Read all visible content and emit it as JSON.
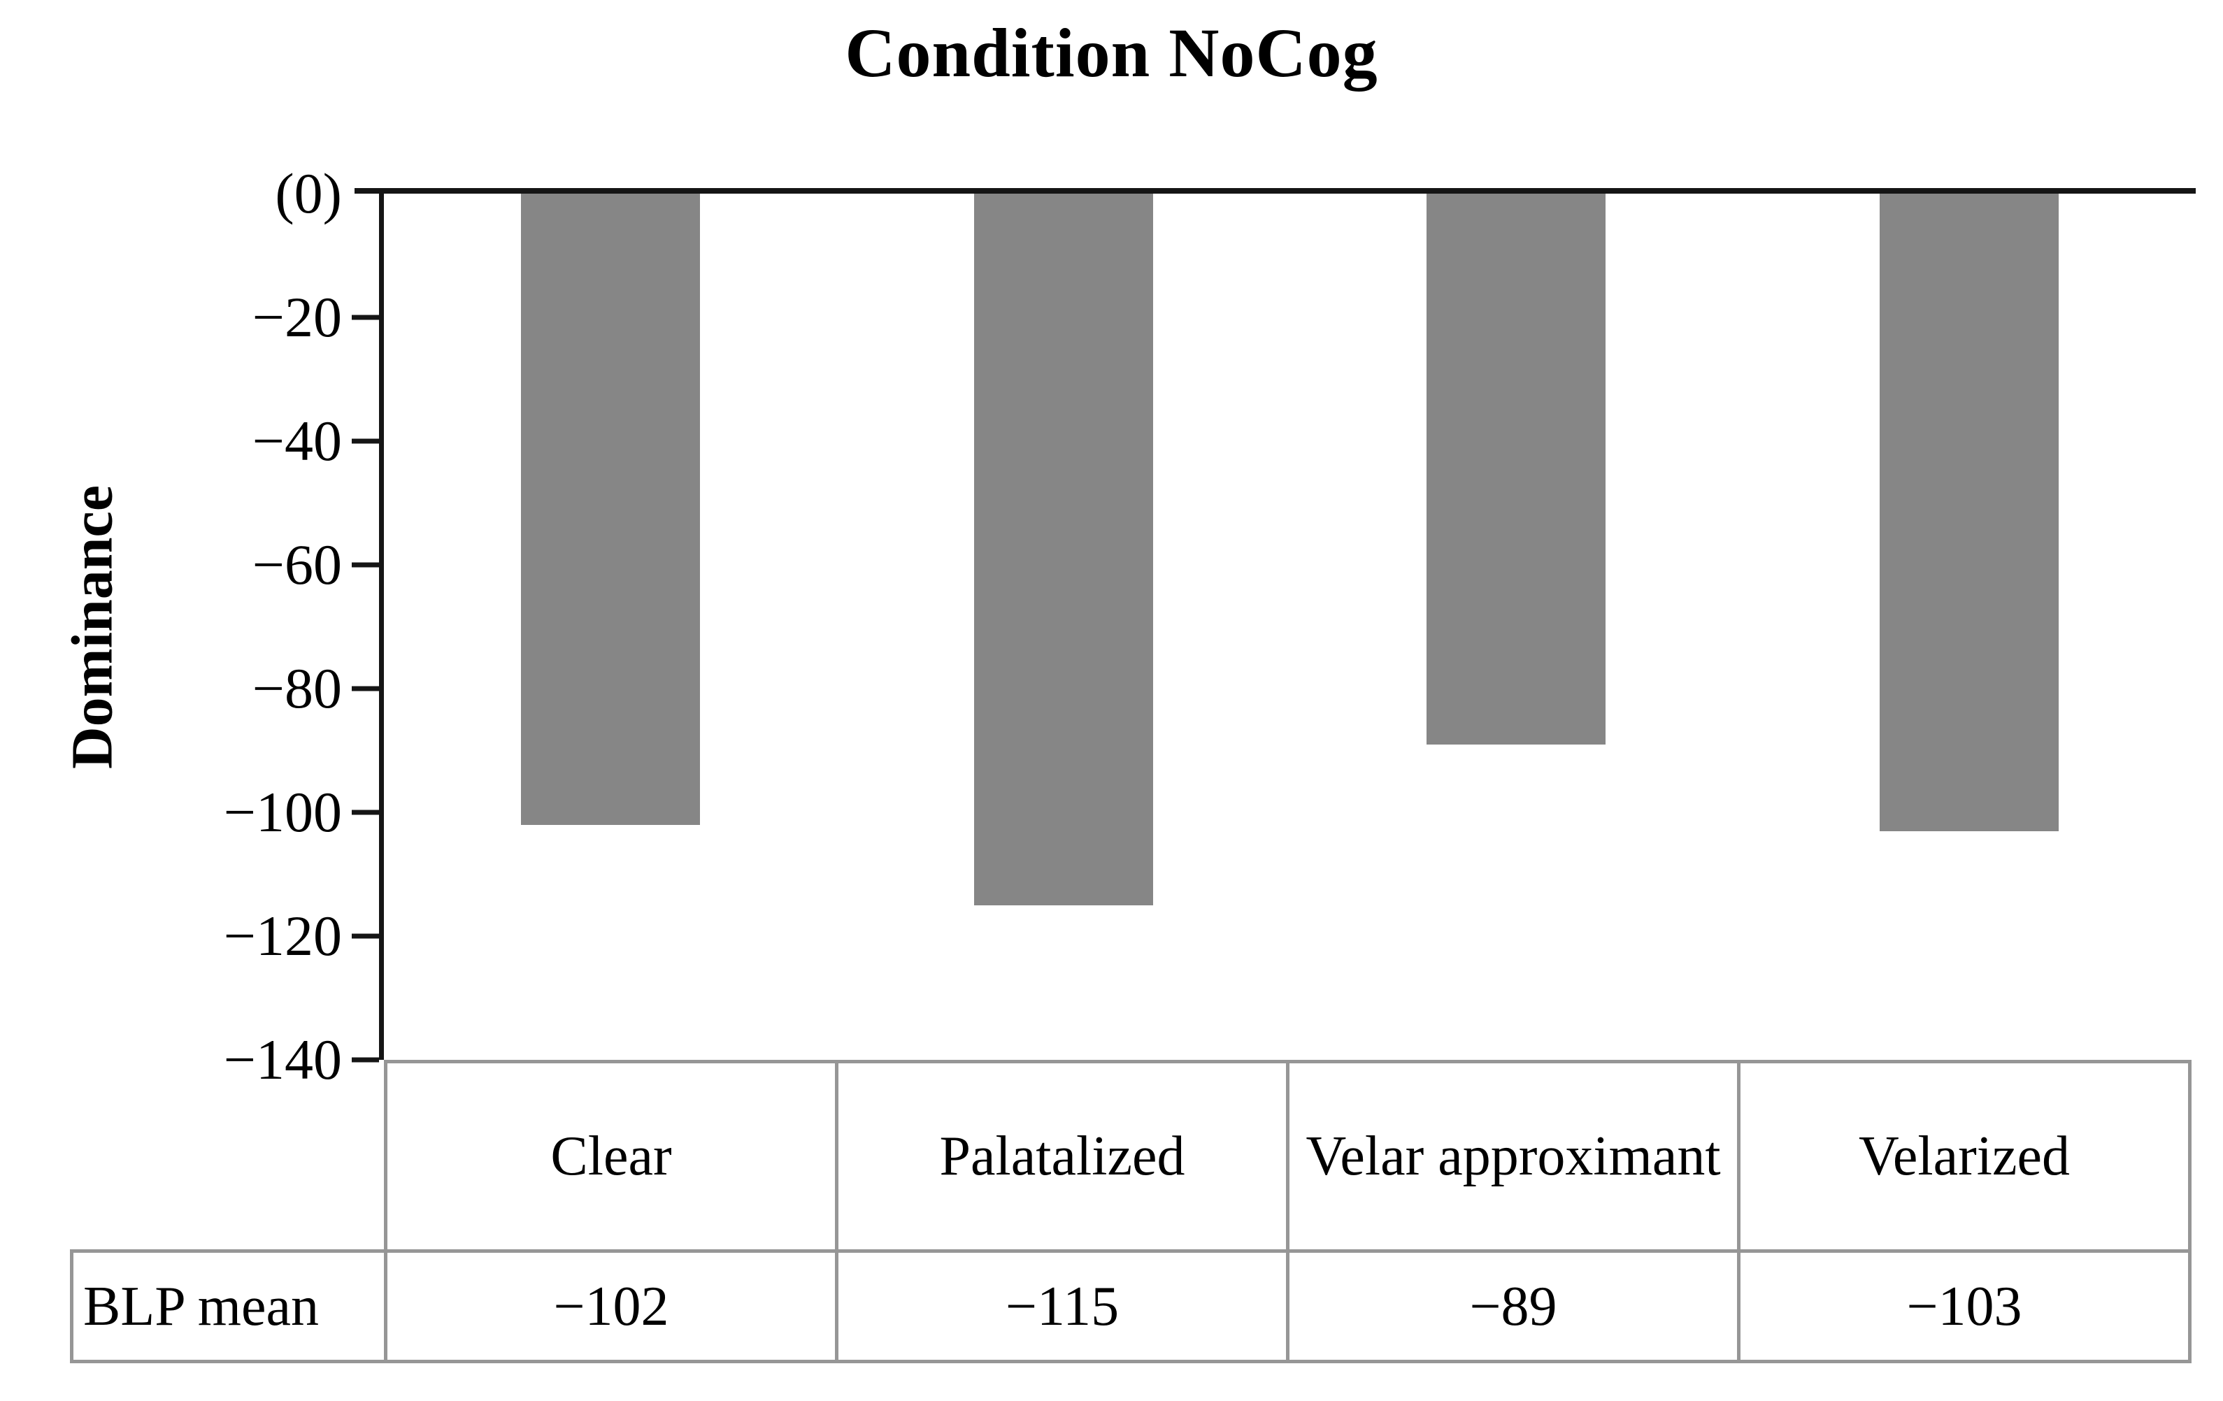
{
  "title": "Condition NoCog",
  "y_axis": {
    "label": "Dominance",
    "ticks": [
      "(0)",
      "−20",
      "−40",
      "−60",
      "−80",
      "−100",
      "−120",
      "−140"
    ]
  },
  "chart_data": {
    "type": "bar",
    "title": "Condition NoCog",
    "categories": [
      "Clear",
      "Palatalized",
      "Velar approximant",
      "Velarized"
    ],
    "series": [
      {
        "name": "BLP mean",
        "values": [
          -102,
          -115,
          -89,
          -103
        ]
      }
    ],
    "xlabel": "",
    "ylabel": "Dominance",
    "ylim": [
      -140,
      0
    ],
    "ytick_step": 20,
    "grid": false,
    "legend_position": "none",
    "bar_color": "#868686",
    "orientation": "vertical-negative"
  },
  "table": {
    "row_label": "BLP mean",
    "columns": [
      "Clear",
      "Palatalized",
      "Velar approximant",
      "Velarized"
    ],
    "values": [
      "−102",
      "−115",
      "−89",
      "−103"
    ]
  },
  "colors": {
    "bar": "#868686",
    "axis": "#151515",
    "table_border": "#969696",
    "text": "#000000",
    "background": "#ffffff"
  }
}
